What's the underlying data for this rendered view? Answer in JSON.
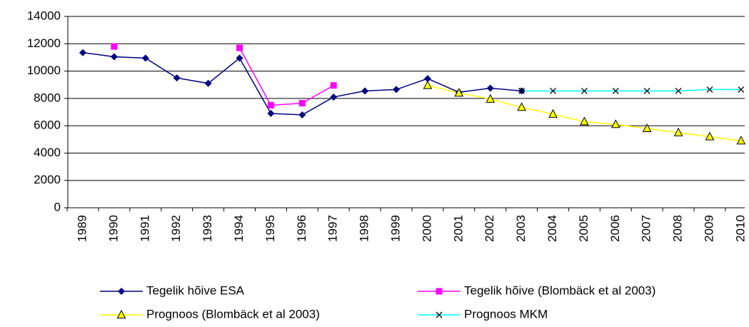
{
  "chart_data": {
    "type": "line",
    "categories": [
      "1989",
      "1990",
      "1991",
      "1992",
      "1993",
      "1994",
      "1995",
      "1996",
      "1997",
      "1998",
      "1999",
      "2000",
      "2001",
      "2002",
      "2003",
      "2004",
      "2005",
      "2006",
      "2007",
      "2008",
      "2009",
      "2010"
    ],
    "series": [
      {
        "name": "Tegelik hõive ESA",
        "color": "#000080",
        "marker": "diamond",
        "marker_color": "#000080",
        "values": [
          11350,
          11050,
          10950,
          9500,
          9100,
          10950,
          6900,
          6800,
          8100,
          8550,
          8650,
          9450,
          8450,
          8750,
          8550,
          null,
          null,
          null,
          null,
          null,
          null,
          null
        ]
      },
      {
        "name": "Tegelik hõive (Blombäck et al 2003)",
        "color": "#ff00ff",
        "marker": "square",
        "marker_color": "#ff00ff",
        "values": [
          null,
          11800,
          null,
          null,
          null,
          11700,
          7500,
          7650,
          8950,
          null,
          null,
          null,
          null,
          null,
          null,
          null,
          null,
          null,
          null,
          null,
          null,
          null
        ]
      },
      {
        "name": "Prognoos (Blombäck et al 2003)",
        "color": "#ffff00",
        "marker": "triangle",
        "marker_color": "#ffff00",
        "values": [
          null,
          null,
          null,
          null,
          null,
          null,
          null,
          null,
          null,
          null,
          null,
          8950,
          8400,
          7950,
          7350,
          6850,
          6300,
          6100,
          5800,
          5500,
          5200,
          4900
        ]
      },
      {
        "name": "Prognoos MKM",
        "color": "#00ffff",
        "marker": "x",
        "marker_color": "#000000",
        "values": [
          null,
          null,
          null,
          null,
          null,
          null,
          null,
          null,
          null,
          null,
          null,
          null,
          null,
          null,
          8550,
          8550,
          8550,
          8550,
          8550,
          8550,
          8650,
          8650
        ]
      }
    ],
    "ylim": [
      0,
      14000
    ],
    "yticks": [
      0,
      2000,
      4000,
      6000,
      8000,
      10000,
      12000,
      14000
    ],
    "grid": true,
    "legend": "bottom"
  }
}
